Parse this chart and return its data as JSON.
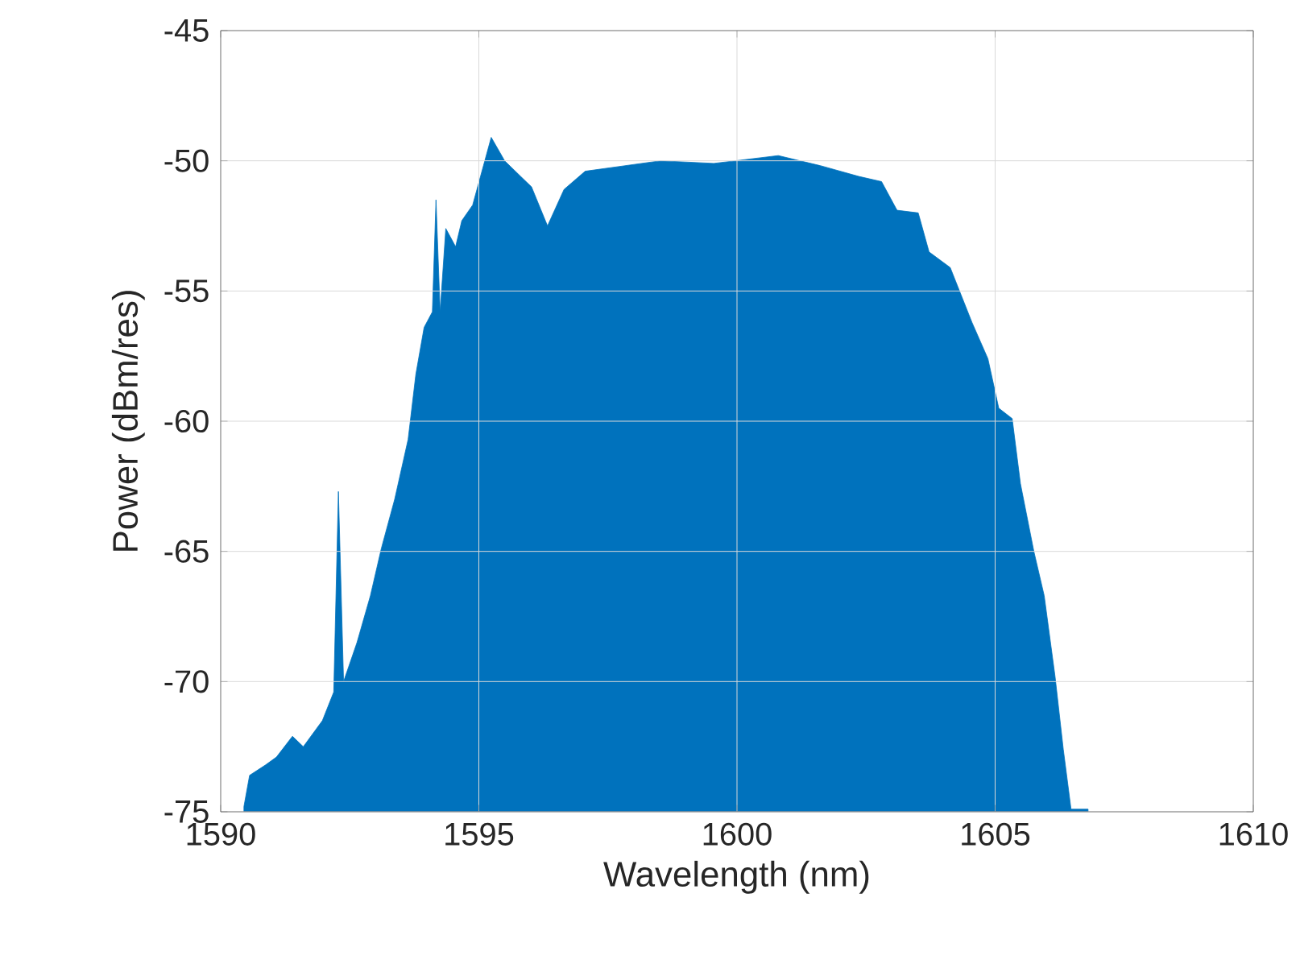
{
  "chart_data": {
    "type": "area",
    "xlabel": "Wavelength (nm)",
    "ylabel": "Power (dBm/res)",
    "x": [
      1590.45,
      1590.56,
      1590.87,
      1591.08,
      1591.39,
      1591.6,
      1591.97,
      1592.19,
      1592.28,
      1592.38,
      1592.64,
      1592.9,
      1593.11,
      1593.37,
      1593.63,
      1593.78,
      1593.94,
      1594.1,
      1594.17,
      1594.25,
      1594.36,
      1594.55,
      1594.67,
      1594.88,
      1595.24,
      1595.5,
      1595.81,
      1596.02,
      1596.33,
      1596.65,
      1597.06,
      1598.52,
      1599.55,
      1600.8,
      1601.64,
      1602.36,
      1602.8,
      1603.1,
      1603.51,
      1603.72,
      1604.13,
      1604.55,
      1604.86,
      1605.07,
      1605.33,
      1605.49,
      1605.75,
      1605.95,
      1606.16,
      1606.32,
      1606.47,
      1606.8
    ],
    "values": [
      -74.8,
      -73.6,
      -73.2,
      -72.9,
      -72.1,
      -72.5,
      -71.5,
      -70.4,
      -62.7,
      -70.0,
      -68.5,
      -66.7,
      -64.9,
      -63.0,
      -60.7,
      -58.2,
      -56.4,
      -55.8,
      -51.5,
      -55.8,
      -52.6,
      -53.3,
      -52.3,
      -51.7,
      -49.1,
      -50.0,
      -50.6,
      -51.0,
      -52.5,
      -51.1,
      -50.4,
      -50.0,
      -50.1,
      -49.8,
      -50.2,
      -50.6,
      -50.8,
      -51.9,
      -52.0,
      -53.5,
      -54.1,
      -56.2,
      -57.6,
      -59.5,
      -59.9,
      -62.4,
      -65.0,
      -66.7,
      -69.8,
      -72.6,
      -74.9,
      -74.9
    ],
    "color": "#0072bd",
    "xlim": [
      1590,
      1610
    ],
    "xticks": [
      1590,
      1595,
      1600,
      1605,
      1610
    ],
    "ylim": [
      -75,
      -45
    ],
    "yticks": [
      -75,
      -70,
      -65,
      -60,
      -55,
      -50,
      -45
    ],
    "grid": true
  }
}
